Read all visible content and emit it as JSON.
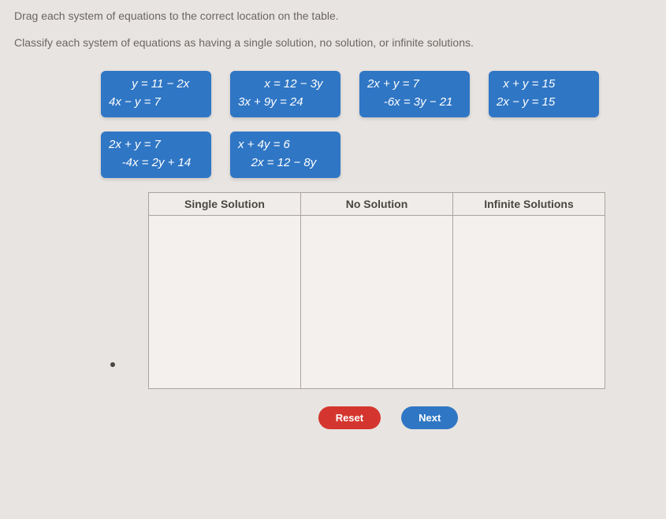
{
  "instructions": {
    "line1": "Drag each system of equations to the correct location on the table.",
    "line2": "Classify each system of equations as having a single solution, no solution, or infinite solutions."
  },
  "tiles": {
    "row1": [
      {
        "l1": "       y = 11 − 2x",
        "l2": "4x − y = 7"
      },
      {
        "l1": "        x = 12 − 3y",
        "l2": "3x + 9y = 24"
      },
      {
        "l1": "2x + y = 7",
        "l2": "     -6x = 3y − 21"
      },
      {
        "l1": "  x + y = 15",
        "l2": "2x − y = 15"
      }
    ],
    "row2": [
      {
        "l1": "2x + y = 7",
        "l2": "    -4x = 2y + 14"
      },
      {
        "l1": "x + 4y = 6",
        "l2": "    2x = 12 − 8y"
      }
    ]
  },
  "table": {
    "headers": [
      "Single Solution",
      "No Solution",
      "Infinite Solutions"
    ]
  },
  "buttons": {
    "reset": "Reset",
    "next": "Next"
  },
  "colors": {
    "tile_bg": "#2f76c4",
    "tile_text": "#ffffff",
    "page_bg": "#e8e4e1",
    "reset_bg": "#d4362f",
    "next_bg": "#2f76c4",
    "border": "#a9a4a0"
  }
}
